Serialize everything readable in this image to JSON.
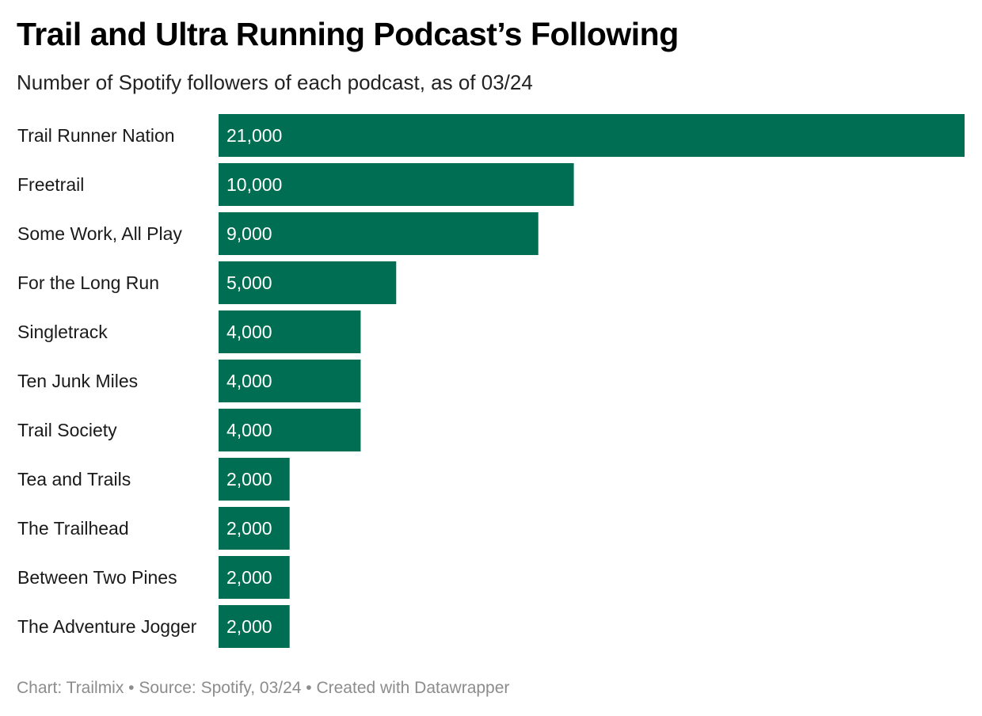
{
  "header": {
    "title": "Trail and Ultra Running Podcast’s Following",
    "subtitle": "Number of Spotify followers of each podcast, as of 03/24"
  },
  "footer": {
    "text": "Chart: Trailmix • Source: Spotify, 03/24 • Created with Datawrapper"
  },
  "chart_data": {
    "type": "bar",
    "orientation": "horizontal",
    "categories": [
      "Trail Runner Nation",
      "Freetrail",
      "Some Work, All Play",
      "For the Long Run",
      "Singletrack",
      "Ten Junk Miles",
      "Trail Society",
      "Tea and Trails",
      "The Trailhead",
      "Between Two Pines",
      "The Adventure Jogger"
    ],
    "values": [
      21000,
      10000,
      9000,
      5000,
      4000,
      4000,
      4000,
      2000,
      2000,
      2000,
      2000
    ],
    "value_labels": [
      "21,000",
      "10,000",
      "9,000",
      "5,000",
      "4,000",
      "4,000",
      "4,000",
      "2,000",
      "2,000",
      "2,000",
      "2,000"
    ],
    "xlim": [
      0,
      21000
    ],
    "grid": false,
    "bar_color": "#006e52",
    "label_color": "#ffffff"
  }
}
